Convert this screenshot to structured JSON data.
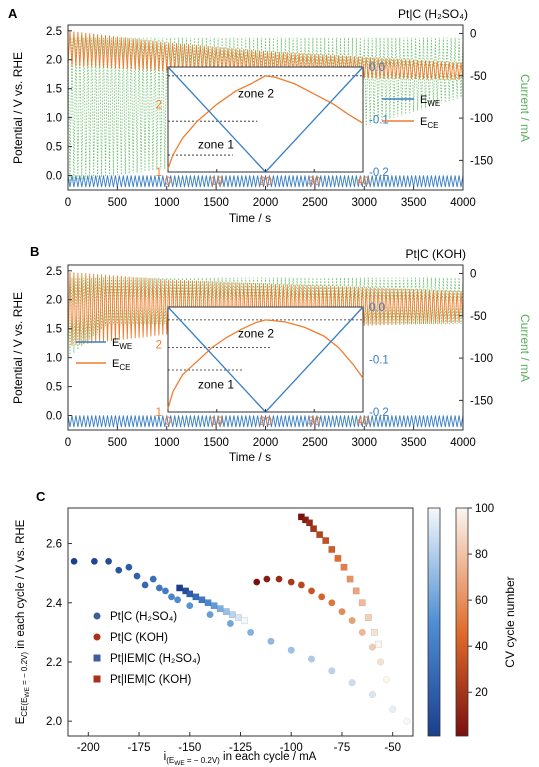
{
  "colors": {
    "we": "#3a7fc4",
    "ce": "#f07d2e",
    "current": "#6cc06c",
    "axis": "#333333",
    "dashed": "#222222",
    "sulf_circle": "#3e5c9e",
    "koh_circle": "#a8301d"
  },
  "chart_data": [
    {
      "id": "A",
      "panel_label": "A",
      "type": "line",
      "title": "Pt|C (H₂SO₄)",
      "xlabel": "Time / s",
      "ylabel": "Potential / V vs. RHE",
      "y2label": "Current / mA",
      "xlim": [
        0,
        4000
      ],
      "ylim": [
        -0.25,
        2.6
      ],
      "y2lim": [
        -185,
        10
      ],
      "xticks": [
        "0",
        "500",
        "1000",
        "1500",
        "2000",
        "2500",
        "3000",
        "3500",
        "4000"
      ],
      "yticks": [
        "0.0",
        "0.5",
        "1.0",
        "1.5",
        "2.0",
        "2.5"
      ],
      "y2ticks": [
        "0",
        "-50",
        "-100",
        "-150"
      ],
      "series": [
        {
          "name": "E_WE",
          "desc": "oscillates between -0.2 and 0.0 V every 40 s, 100 cycles"
        },
        {
          "name": "E_CE",
          "upper": {
            "x": [
              0,
              1000,
              2000,
              3000,
              4000
            ],
            "y": [
              2.5,
              2.3,
              2.15,
              2.05,
              1.95
            ]
          },
          "lower": {
            "x": [
              0,
              1000,
              2000,
              3000,
              4000
            ],
            "y": [
              1.9,
              1.8,
              1.72,
              1.68,
              1.65
            ]
          }
        },
        {
          "name": "Current",
          "upper": {
            "x": [
              0,
              4000
            ],
            "y": [
              -5,
              -5
            ]
          },
          "lower": {
            "x": [
              0,
              1000,
              2000,
              3000,
              4000
            ],
            "y": [
              -175,
              -160,
              -140,
              -110,
              -75
            ]
          }
        }
      ],
      "inset": {
        "xlim": [
          0,
          40
        ],
        "ylim": [
          1,
          2.55
        ],
        "y2lim": [
          -0.2,
          0.0
        ],
        "xticks": [
          "0",
          "10",
          "20",
          "30",
          "40"
        ],
        "yticks": [
          "1",
          "2"
        ],
        "y2ticks": [
          "0.0",
          "-0.1",
          "-0.2"
        ],
        "ce_points": {
          "x": [
            0,
            1,
            3,
            6,
            10,
            14,
            17,
            19,
            20,
            22,
            26,
            30,
            34,
            37,
            40
          ],
          "y": [
            1.05,
            1.25,
            1.5,
            1.75,
            2.0,
            2.2,
            2.3,
            2.38,
            2.42,
            2.4,
            2.3,
            2.15,
            2.0,
            1.85,
            1.72
          ]
        },
        "we_points": {
          "x": [
            0,
            20,
            40
          ],
          "y": [
            0.0,
            -0.2,
            0.0
          ]
        },
        "dashed_levels": [
          2.42,
          1.75,
          1.25
        ],
        "labels": [
          "zone 2",
          "zone 1"
        ]
      },
      "legend": [
        "E",
        "E"
      ],
      "legend_subs": [
        "WE",
        "CE"
      ],
      "legend_placement": "right"
    },
    {
      "id": "B",
      "panel_label": "B",
      "type": "line",
      "title": "Pt|C (KOH)",
      "xlabel": "Time / s",
      "ylabel": "Potential / V vs. RHE",
      "y2label": "Current / mA",
      "xlim": [
        0,
        4000
      ],
      "ylim": [
        -0.25,
        2.6
      ],
      "y2lim": [
        -185,
        10
      ],
      "xticks": [
        "0",
        "500",
        "1000",
        "1500",
        "2000",
        "2500",
        "3000",
        "3500",
        "4000"
      ],
      "yticks": [
        "0.0",
        "0.5",
        "1.0",
        "1.5",
        "2.0",
        "2.5"
      ],
      "y2ticks": [
        "0",
        "-50",
        "-100",
        "-150"
      ],
      "series": [
        {
          "name": "E_WE",
          "desc": "oscillates between -0.2 and 0.0 V every 40 s, 100 cycles"
        },
        {
          "name": "E_CE",
          "upper": {
            "x": [
              0,
              1000,
              2000,
              3000,
              4000
            ],
            "y": [
              2.48,
              2.35,
              2.28,
              2.22,
              2.15
            ]
          },
          "lower": {
            "x": [
              0,
              1000,
              2000,
              3000,
              4000
            ],
            "y": [
              1.2,
              1.4,
              1.5,
              1.55,
              1.6
            ]
          }
        },
        {
          "name": "Current",
          "upper": {
            "x": [
              0,
              4000
            ],
            "y": [
              -5,
              -5
            ]
          },
          "lower": {
            "x": [
              0,
              400,
              4000
            ],
            "y": [
              -100,
              -60,
              -60
            ]
          }
        }
      ],
      "inset": {
        "xlim": [
          0,
          40
        ],
        "ylim": [
          1,
          2.55
        ],
        "y2lim": [
          -0.2,
          0.0
        ],
        "xticks": [
          "0",
          "10",
          "20",
          "30",
          "40"
        ],
        "yticks": [
          "1",
          "2"
        ],
        "y2ticks": [
          "0.0",
          "-0.1",
          "-0.2"
        ],
        "ce_points": {
          "x": [
            0,
            1,
            3,
            6,
            9,
            12,
            15,
            18,
            20,
            24,
            28,
            32,
            35,
            38,
            40
          ],
          "y": [
            1.05,
            1.3,
            1.55,
            1.75,
            1.95,
            2.1,
            2.22,
            2.32,
            2.36,
            2.33,
            2.25,
            2.12,
            1.95,
            1.7,
            1.5
          ]
        },
        "we_points": {
          "x": [
            0,
            20,
            40
          ],
          "y": [
            0.0,
            -0.2,
            0.0
          ]
        },
        "dashed_levels": [
          2.36,
          1.95,
          1.62
        ],
        "labels": [
          "zone 2",
          "zone 1"
        ]
      },
      "legend": [
        "E",
        "E"
      ],
      "legend_subs": [
        "WE",
        "CE"
      ],
      "legend_placement": "left"
    },
    {
      "id": "C",
      "panel_label": "C",
      "type": "scatter",
      "xlabel": "i(E_WE = -0.2V) in each cycle / mA",
      "xlabel_parts": [
        "i",
        "(E",
        "WE",
        " = − 0.2V)",
        " in each cycle / mA"
      ],
      "ylabel": "E_CE(E_WE = -0.2V) in each cycle / V vs. RHE",
      "ylabel_parts": [
        "E",
        "CE(E",
        "WE",
        " = − 0.2V)",
        " in each cycle / V vs. RHE"
      ],
      "xlim": [
        -210,
        -40
      ],
      "ylim": [
        1.95,
        2.72
      ],
      "xticks": [
        "-200",
        "-175",
        "-150",
        "-125",
        "-100",
        "-75",
        "-50"
      ],
      "yticks": [
        "2.0",
        "2.2",
        "2.4",
        "2.6"
      ],
      "colorbar": {
        "label": "CV cycle number",
        "ticks": [
          "20",
          "40",
          "60",
          "80",
          "100"
        ],
        "range": [
          1,
          100
        ]
      },
      "series": [
        {
          "name": "Pt|C (H₂SO₄)",
          "marker": "circle",
          "scheme": "blue",
          "points": {
            "x": [
              -207,
              -197,
              -190,
              -185,
              -180,
              -176,
              -172,
              -168,
              -165,
              -162,
              -159,
              -156,
              -150,
              -140,
              -130,
              -120,
              -110,
              -100,
              -90,
              -80,
              -70,
              -60,
              -50,
              -43
            ],
            "y": [
              2.54,
              2.54,
              2.54,
              2.51,
              2.52,
              2.49,
              2.46,
              2.48,
              2.45,
              2.44,
              2.42,
              2.41,
              2.39,
              2.36,
              2.33,
              2.3,
              2.27,
              2.24,
              2.21,
              2.17,
              2.13,
              2.09,
              2.04,
              2.0
            ]
          }
        },
        {
          "name": "Pt|C (KOH)",
          "marker": "circle",
          "scheme": "red",
          "points": {
            "x": [
              -117,
              -112,
              -106,
              -100,
              -95,
              -90,
              -85,
              -80,
              -75,
              -70,
              -65,
              -60,
              -56,
              -53
            ],
            "y": [
              2.47,
              2.48,
              2.48,
              2.47,
              2.46,
              2.44,
              2.42,
              2.4,
              2.37,
              2.34,
              2.3,
              2.25,
              2.2,
              2.14
            ]
          }
        },
        {
          "name": "Pt|IEM|C (H₂SO₄)",
          "marker": "square",
          "scheme": "blue",
          "points": {
            "x": [
              -155,
              -152,
              -150,
              -147,
              -144,
              -141,
              -138,
              -135,
              -132,
              -129,
              -126,
              -123
            ],
            "y": [
              2.45,
              2.44,
              2.43,
              2.42,
              2.41,
              2.4,
              2.39,
              2.38,
              2.37,
              2.36,
              2.35,
              2.34
            ]
          }
        },
        {
          "name": "Pt|IEM|C (KOH)",
          "marker": "square",
          "scheme": "red",
          "points": {
            "x": [
              -95,
              -93,
              -91,
              -89,
              -86,
              -83,
              -80,
              -77,
              -74,
              -71,
              -68,
              -65,
              -62,
              -59,
              -57
            ],
            "y": [
              2.69,
              2.68,
              2.67,
              2.65,
              2.63,
              2.61,
              2.58,
              2.55,
              2.52,
              2.48,
              2.44,
              2.4,
              2.35,
              2.3,
              2.26
            ]
          }
        }
      ],
      "legend_placement": "bottom-left"
    }
  ]
}
